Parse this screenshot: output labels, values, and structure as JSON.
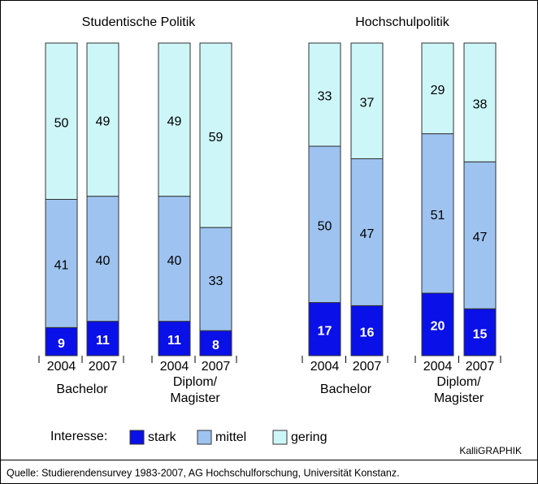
{
  "chart_data": {
    "type": "bar",
    "stacked": true,
    "panels": [
      {
        "title": "Studentische Politik",
        "groups": [
          "Bachelor",
          "Diplom/\nMagister"
        ]
      },
      {
        "title": "Hochschulpolitik",
        "groups": [
          "Bachelor",
          "Diplom/\nMagister"
        ]
      }
    ],
    "categories": [
      "2004",
      "2007",
      "2004",
      "2007",
      "2004",
      "2007",
      "2004",
      "2007"
    ],
    "series": [
      {
        "name": "stark",
        "color": "#0a10e8",
        "values": [
          9,
          11,
          11,
          8,
          17,
          16,
          20,
          15
        ]
      },
      {
        "name": "mittel",
        "color": "#9ec3f0",
        "values": [
          41,
          40,
          40,
          33,
          50,
          47,
          51,
          47
        ]
      },
      {
        "name": "gering",
        "color": "#cdf6f8",
        "values": [
          50,
          49,
          49,
          59,
          33,
          37,
          29,
          38
        ]
      }
    ],
    "ylim": [
      0,
      100
    ],
    "legend_title": "Interesse:",
    "credit": "KalliGRAPHIK",
    "source": "Quelle: Studierendensurvey 1983-2007, AG Hochschulforschung, Universität Konstanz."
  }
}
